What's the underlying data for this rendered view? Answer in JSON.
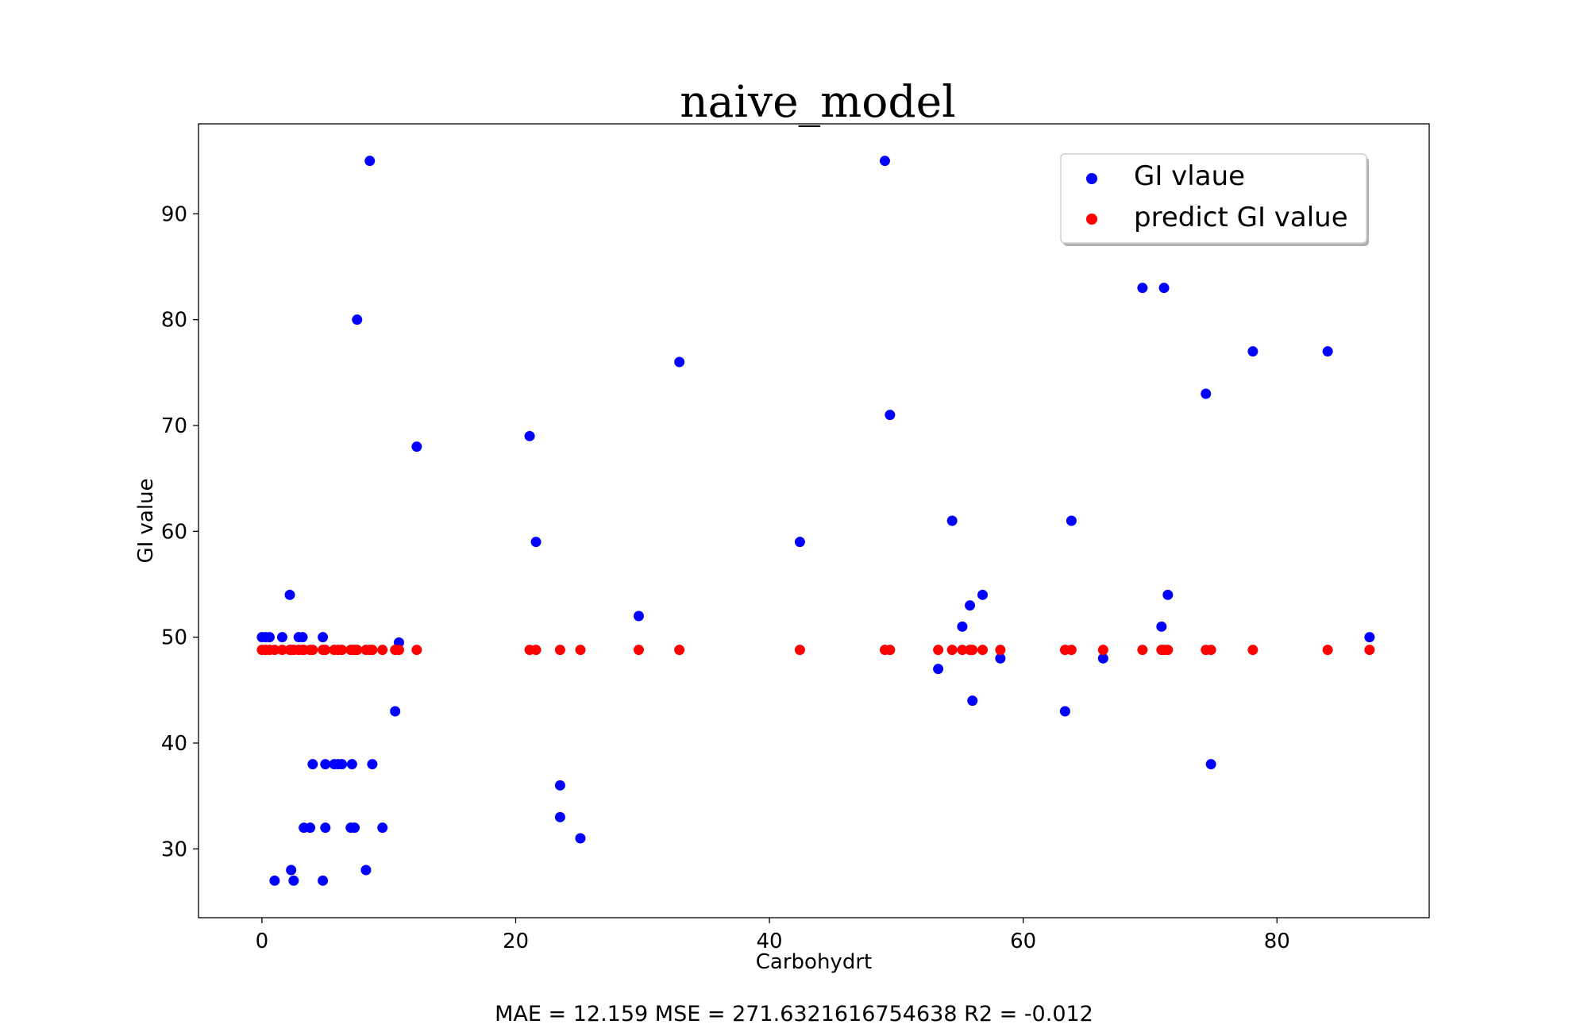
{
  "chart_data": {
    "type": "scatter",
    "title": "naive_model",
    "xlabel": "Carbohydrt",
    "ylabel": "GI value",
    "xlim": [
      -5,
      92
    ],
    "ylim": [
      23.5,
      98.5
    ],
    "xticks": [
      0,
      20,
      40,
      60,
      80
    ],
    "yticks": [
      30,
      40,
      50,
      60,
      70,
      80,
      90
    ],
    "grid": false,
    "legend_position": "top-right",
    "footer": "MAE = 12.159 MSE = 271.6321616754638 R2 = -0.012",
    "series": [
      {
        "name": "GI vlaue",
        "color": "#0000ff",
        "points": [
          [
            0.0,
            50
          ],
          [
            0.3,
            50
          ],
          [
            0.6,
            50
          ],
          [
            1.0,
            27
          ],
          [
            1.6,
            50
          ],
          [
            2.2,
            54
          ],
          [
            2.3,
            28
          ],
          [
            2.5,
            27
          ],
          [
            2.9,
            50
          ],
          [
            3.2,
            50
          ],
          [
            3.3,
            32
          ],
          [
            3.8,
            32
          ],
          [
            4.0,
            38
          ],
          [
            4.8,
            50
          ],
          [
            4.8,
            27
          ],
          [
            5.0,
            32
          ],
          [
            5.0,
            38
          ],
          [
            5.7,
            38
          ],
          [
            6.0,
            38
          ],
          [
            6.3,
            38
          ],
          [
            7.0,
            32
          ],
          [
            7.1,
            38
          ],
          [
            7.3,
            32
          ],
          [
            7.5,
            80
          ],
          [
            8.2,
            28
          ],
          [
            8.5,
            95
          ],
          [
            8.7,
            38
          ],
          [
            9.5,
            32
          ],
          [
            10.5,
            43
          ],
          [
            10.8,
            49.5
          ],
          [
            12.2,
            68
          ],
          [
            21.1,
            69
          ],
          [
            21.6,
            59
          ],
          [
            23.5,
            36
          ],
          [
            23.5,
            33
          ],
          [
            25.1,
            31
          ],
          [
            29.7,
            52
          ],
          [
            32.9,
            76
          ],
          [
            42.4,
            59
          ],
          [
            49.1,
            95
          ],
          [
            49.5,
            71
          ],
          [
            53.3,
            47
          ],
          [
            54.4,
            61
          ],
          [
            55.2,
            51
          ],
          [
            55.8,
            53
          ],
          [
            56.0,
            44
          ],
          [
            56.8,
            54
          ],
          [
            58.2,
            48
          ],
          [
            63.3,
            43
          ],
          [
            63.8,
            61
          ],
          [
            66.3,
            48
          ],
          [
            69.4,
            83
          ],
          [
            70.9,
            51
          ],
          [
            71.1,
            83
          ],
          [
            71.4,
            54
          ],
          [
            74.4,
            73
          ],
          [
            74.8,
            38
          ],
          [
            78.1,
            77
          ],
          [
            84.0,
            77
          ],
          [
            87.3,
            50
          ]
        ]
      },
      {
        "name": "predict GI value",
        "color": "#ff0000",
        "value": 48.8,
        "x": [
          0.0,
          0.3,
          0.6,
          1.0,
          1.6,
          2.2,
          2.3,
          2.5,
          2.9,
          3.2,
          3.3,
          3.8,
          4.0,
          4.8,
          5.0,
          5.7,
          6.0,
          6.3,
          7.0,
          7.1,
          7.3,
          7.5,
          8.2,
          8.5,
          8.7,
          9.5,
          10.5,
          10.8,
          12.2,
          21.1,
          21.6,
          23.5,
          25.1,
          29.7,
          32.9,
          42.4,
          49.1,
          49.5,
          53.3,
          54.4,
          55.2,
          55.8,
          56.0,
          56.8,
          58.2,
          63.3,
          63.8,
          66.3,
          69.4,
          70.9,
          71.1,
          71.4,
          74.4,
          74.8,
          78.1,
          84.0,
          87.3
        ]
      }
    ]
  }
}
